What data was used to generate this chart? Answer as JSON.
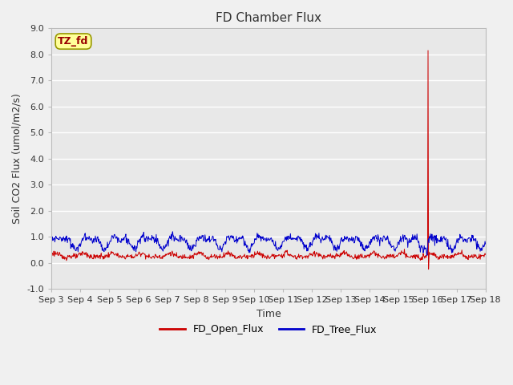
{
  "title": "FD Chamber Flux",
  "xlabel": "Time",
  "ylabel": "Soil CO2 Flux (umol/m2/s)",
  "ylim": [
    -1.0,
    9.0
  ],
  "yticks": [
    -1.0,
    0.0,
    1.0,
    2.0,
    3.0,
    4.0,
    5.0,
    6.0,
    7.0,
    8.0,
    9.0
  ],
  "xtick_labels": [
    "Sep 3",
    "Sep 4",
    "Sep 5",
    "Sep 6",
    "Sep 7",
    "Sep 8",
    "Sep 9",
    "Sep 10",
    "Sep 11",
    "Sep 12",
    "Sep 13",
    "Sep 14",
    "Sep 15",
    "Sep 16",
    "Sep 17",
    "Sep 18"
  ],
  "open_flux_color": "#cc0000",
  "tree_flux_color": "#0000cc",
  "fig_bg_color": "#f0f0f0",
  "axes_bg_color": "#e8e8e8",
  "annotation_label": "TZ_fd",
  "annotation_color": "#990000",
  "annotation_bg": "#ffff99",
  "annotation_border": "#999900",
  "legend_labels": [
    "FD_Open_Flux",
    "FD_Tree_Flux"
  ],
  "spike_max": 8.15,
  "spike_min": -0.25,
  "n_days": 15,
  "pts_per_day": 60
}
